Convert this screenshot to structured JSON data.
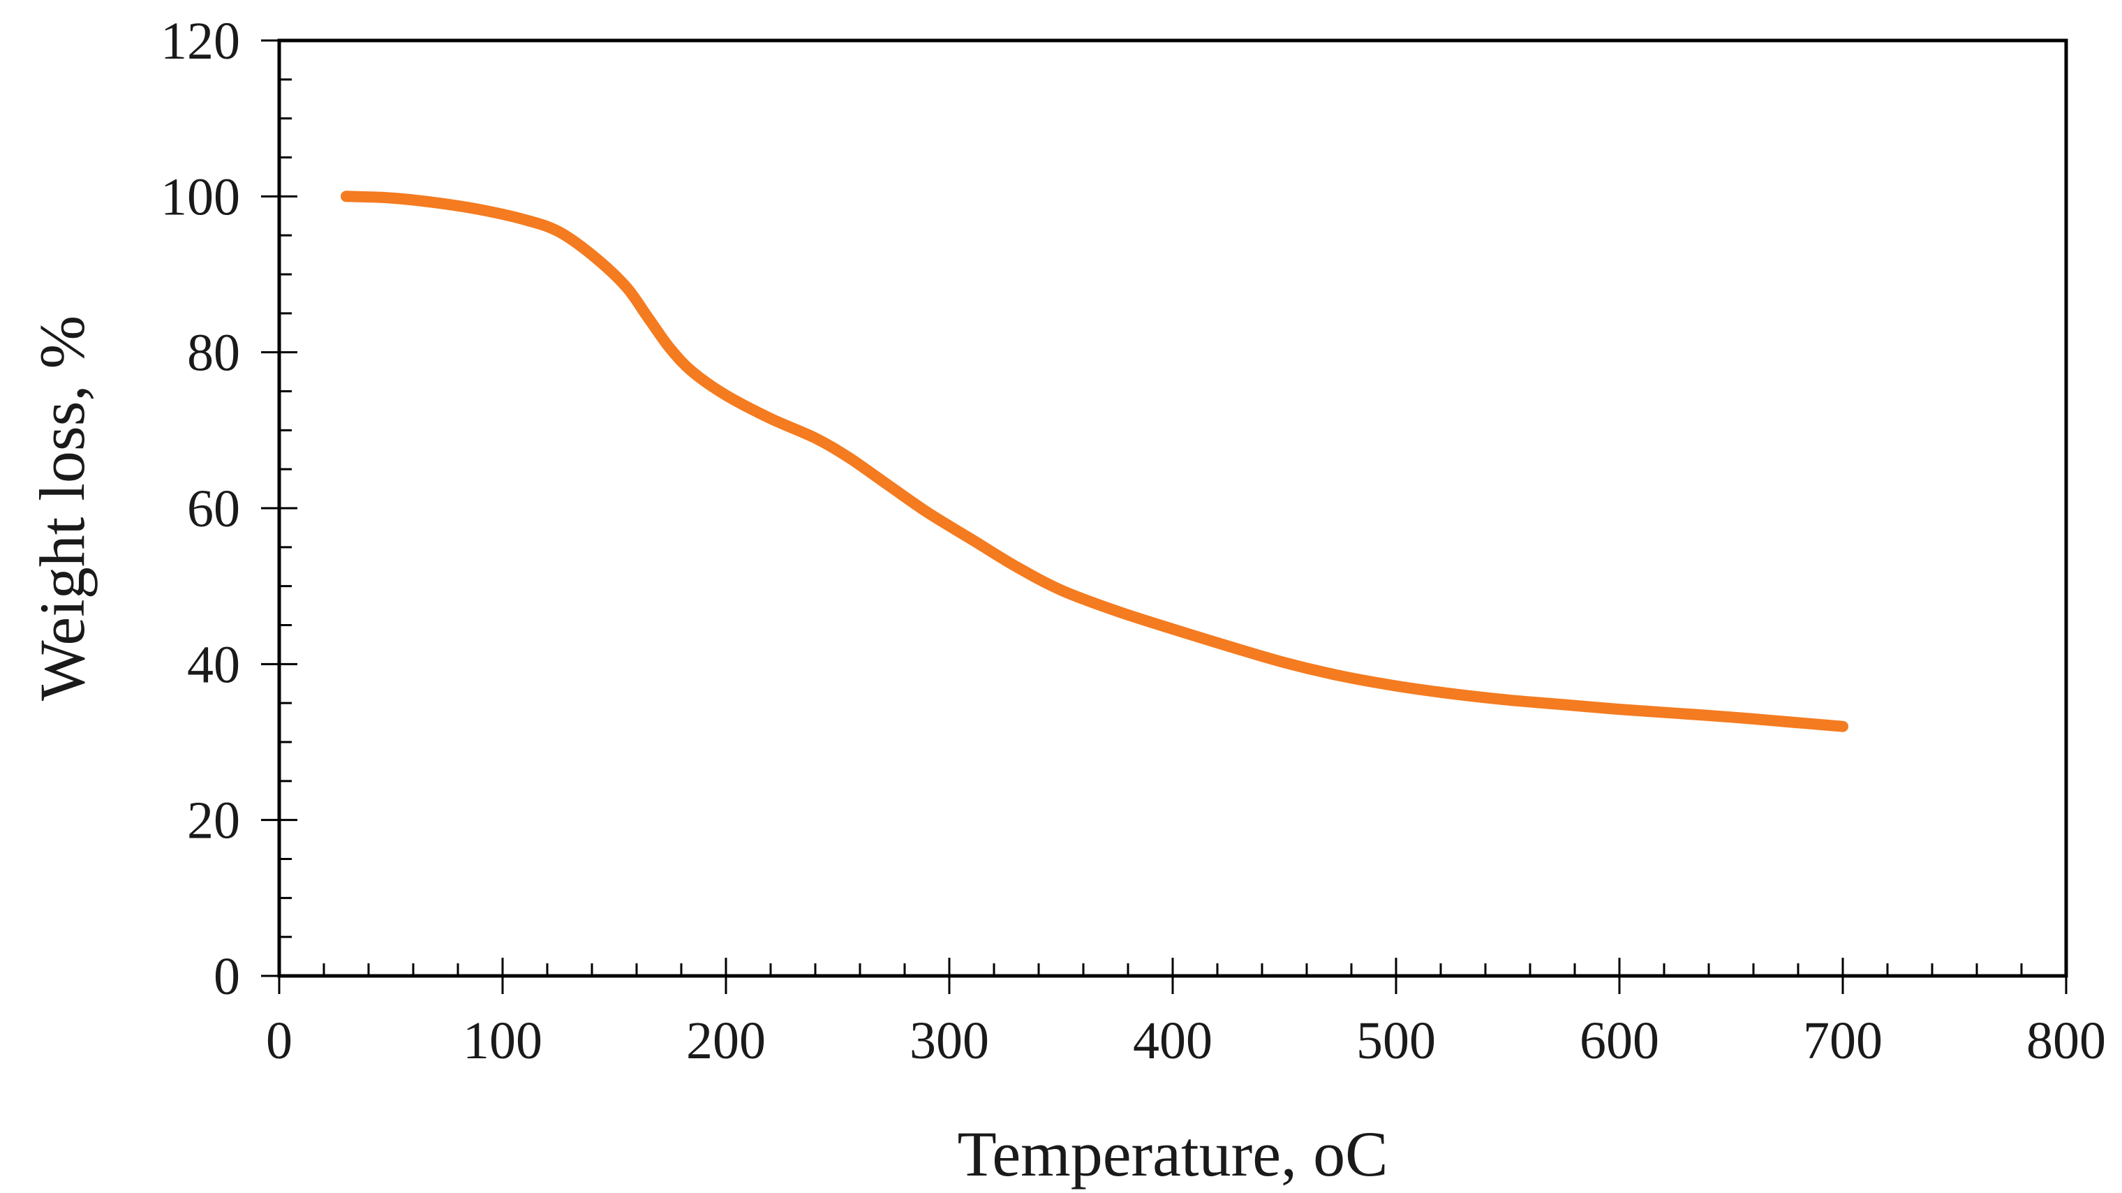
{
  "chart_data": {
    "type": "line",
    "title": "",
    "xlabel": "Temperature, ",
    "xlabel_unit": "oC",
    "ylabel": "Weight loss, %",
    "xlim": [
      0,
      800
    ],
    "ylim": [
      0,
      120
    ],
    "x_ticks": [
      0,
      100,
      200,
      300,
      400,
      500,
      600,
      700,
      800
    ],
    "x_tick_labels": [
      "0",
      "100",
      "200",
      "300",
      "400",
      "500",
      "600",
      "700",
      "800"
    ],
    "y_ticks": [
      0,
      20,
      40,
      60,
      80,
      100,
      120
    ],
    "y_tick_labels": [
      "0",
      "20",
      "40",
      "60",
      "80",
      "100",
      "120"
    ],
    "x_minor_step": 20,
    "y_minor_step": 5,
    "grid": false,
    "legend": "none",
    "series": [
      {
        "name": "Weight loss",
        "color": "#F47B20",
        "x": [
          30,
          50,
          70,
          90,
          110,
          125,
          140,
          155,
          165,
          175,
          185,
          200,
          220,
          240,
          255,
          270,
          290,
          310,
          330,
          350,
          375,
          400,
          425,
          450,
          475,
          500,
          525,
          550,
          575,
          600,
          625,
          650,
          675,
          700
        ],
        "y": [
          100,
          99.8,
          99.2,
          98.3,
          97,
          95.5,
          92.5,
          88.5,
          84.5,
          80.5,
          77.5,
          74.5,
          71.5,
          69,
          66.5,
          63.5,
          59.5,
          56,
          52.5,
          49.5,
          46.8,
          44.5,
          42.3,
          40.2,
          38.5,
          37.2,
          36.2,
          35.4,
          34.8,
          34.2,
          33.7,
          33.2,
          32.6,
          32
        ]
      }
    ]
  }
}
